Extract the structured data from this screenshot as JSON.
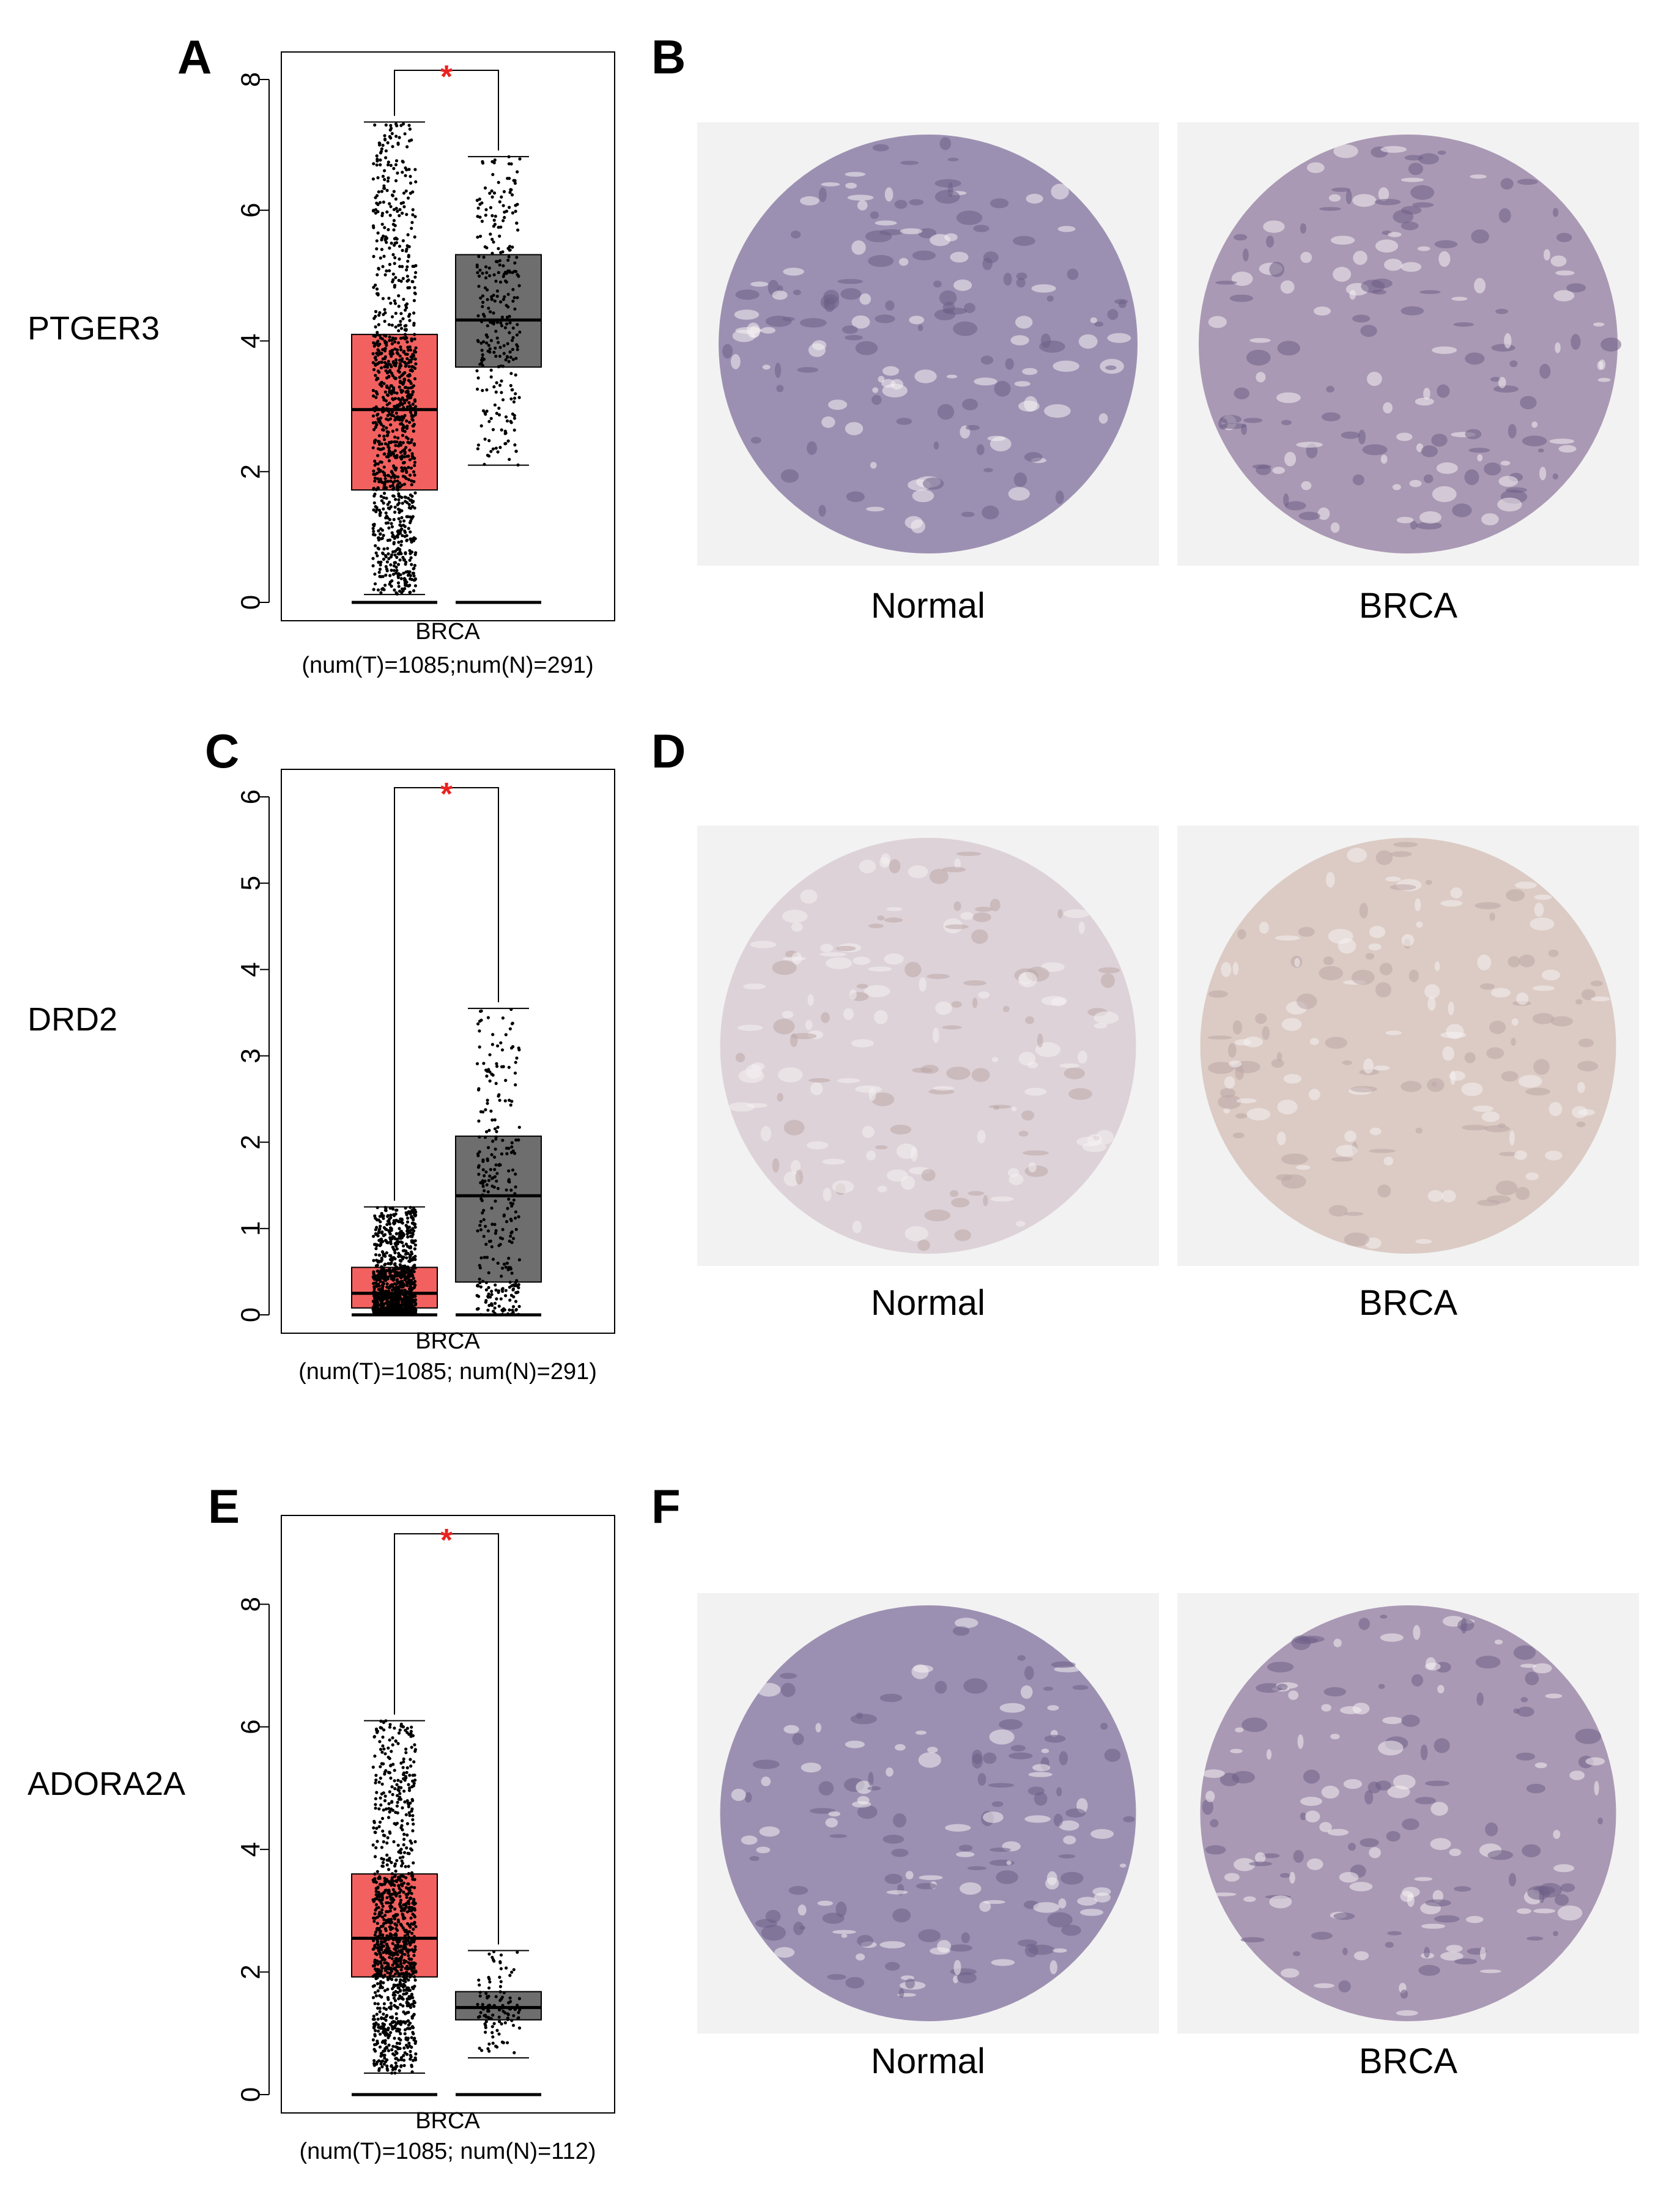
{
  "colors": {
    "tumor_box": "#F2615F",
    "normal_box": "#6E6E6E",
    "significance_star": "#E8221F",
    "tissue_normal_bg": "#F1F1F1"
  },
  "panels": [
    {
      "letter": "A",
      "gene": "PTGER3",
      "image_panel_letter": "B",
      "image_labels": [
        "Normal",
        "BRCA"
      ],
      "significance": "*",
      "tumor_points": 1085,
      "normal_points": 291,
      "chart_data": {
        "type": "box",
        "categories": [
          "BRCA"
        ],
        "xlabel": "BRCA",
        "subtitle": "(num(T)=1085;num(N)=291)",
        "ylim": [
          0,
          8
        ],
        "yticks": [
          0,
          2,
          4,
          6,
          8
        ],
        "series": [
          {
            "group": "T",
            "color": "#F2615F",
            "whisker_low": 0.12,
            "q1": 1.72,
            "median": 2.95,
            "q3": 4.1,
            "whisker_high": 7.35
          },
          {
            "group": "N",
            "color": "#6E6E6E",
            "whisker_low": 2.1,
            "q1": 3.6,
            "median": 4.32,
            "q3": 5.32,
            "whisker_high": 6.82
          }
        ]
      }
    },
    {
      "letter": "C",
      "gene": "DRD2",
      "image_panel_letter": "D",
      "image_labels": [
        "Normal",
        "BRCA"
      ],
      "significance": "*",
      "tumor_points": 1085,
      "normal_points": 291,
      "chart_data": {
        "type": "box",
        "categories": [
          "BRCA"
        ],
        "xlabel": "BRCA",
        "subtitle": "(num(T)=1085; num(N)=291)",
        "ylim": [
          0,
          6
        ],
        "yticks": [
          0,
          1,
          2,
          3,
          4,
          5,
          6
        ],
        "series": [
          {
            "group": "T",
            "color": "#F2615F",
            "whisker_low": 0.0,
            "q1": 0.08,
            "median": 0.25,
            "q3": 0.55,
            "whisker_high": 1.25
          },
          {
            "group": "N",
            "color": "#6E6E6E",
            "whisker_low": 0.0,
            "q1": 0.38,
            "median": 1.38,
            "q3": 2.07,
            "whisker_high": 3.55
          }
        ]
      }
    },
    {
      "letter": "E",
      "gene": "ADORA2A",
      "image_panel_letter": "F",
      "image_labels": [
        "Normal",
        "BRCA"
      ],
      "significance": "*",
      "tumor_points": 1085,
      "normal_points": 112,
      "chart_data": {
        "type": "box",
        "categories": [
          "BRCA"
        ],
        "xlabel": "BRCA",
        "subtitle": "(num(T)=1085; num(N)=112)",
        "ylim": [
          0,
          9
        ],
        "yticks": [
          0,
          2,
          4,
          6,
          8
        ],
        "series": [
          {
            "group": "T",
            "color": "#F2615F",
            "whisker_low": 0.35,
            "q1": 1.92,
            "median": 2.55,
            "q3": 3.6,
            "whisker_high": 6.1
          },
          {
            "group": "N",
            "color": "#6E6E6E",
            "whisker_low": 0.6,
            "q1": 1.22,
            "median": 1.42,
            "q3": 1.68,
            "whisker_high": 2.35
          }
        ]
      }
    }
  ]
}
